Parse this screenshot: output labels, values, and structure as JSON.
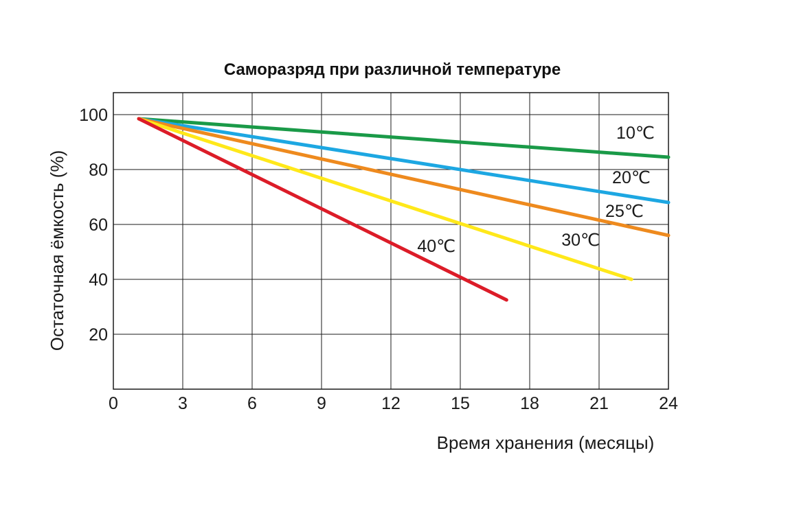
{
  "chart_data": {
    "type": "line",
    "title": "Саморазряд при различной температуре",
    "xlabel": "Время хранения (месяцы)",
    "ylabel": "Остаточная ёмкость (%)",
    "xlim": [
      0,
      24
    ],
    "ylim": [
      0,
      100
    ],
    "x_ticks": [
      "0",
      "3",
      "6",
      "9",
      "12",
      "15",
      "18",
      "21",
      "24"
    ],
    "y_ticks": [
      "20",
      "40",
      "60",
      "80",
      "100"
    ],
    "grid": true,
    "legend": "none",
    "series": [
      {
        "name": "10℃",
        "color": "#1a9a48",
        "x": [
          1.1,
          24
        ],
        "y": [
          98.5,
          84.5
        ]
      },
      {
        "name": "20℃",
        "color": "#1da7e2",
        "x": [
          1.1,
          24
        ],
        "y": [
          98.5,
          68
        ]
      },
      {
        "name": "25℃",
        "color": "#ee8a1e",
        "x": [
          1.1,
          24
        ],
        "y": [
          98.5,
          56
        ]
      },
      {
        "name": "30℃",
        "color": "#ffe81a",
        "x": [
          1.1,
          22.4
        ],
        "y": [
          98.5,
          40
        ]
      },
      {
        "name": "40℃",
        "color": "#dc1c28",
        "x": [
          1.1,
          17
        ],
        "y": [
          98.5,
          32.5
        ]
      }
    ]
  }
}
